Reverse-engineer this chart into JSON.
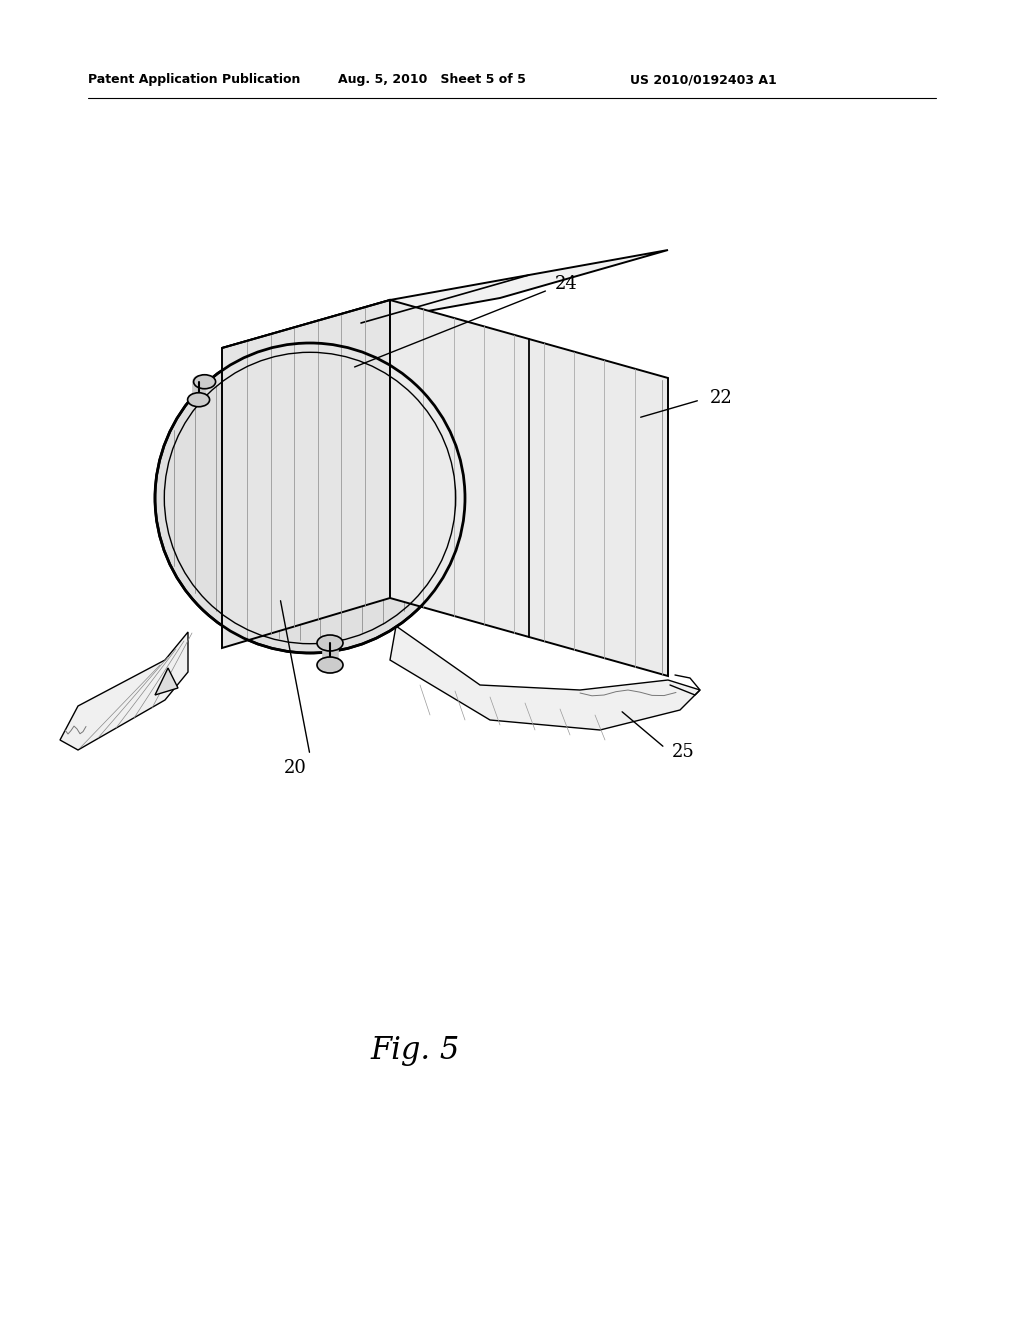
{
  "background_color": "#ffffff",
  "line_color": "#000000",
  "header_left": "Patent Application Publication",
  "header_middle": "Aug. 5, 2010   Sheet 5 of 5",
  "header_right": "US 2010/0192403 A1",
  "figure_label": "Fig. 5",
  "figsize": [
    10.24,
    13.2
  ],
  "dpi": 100
}
